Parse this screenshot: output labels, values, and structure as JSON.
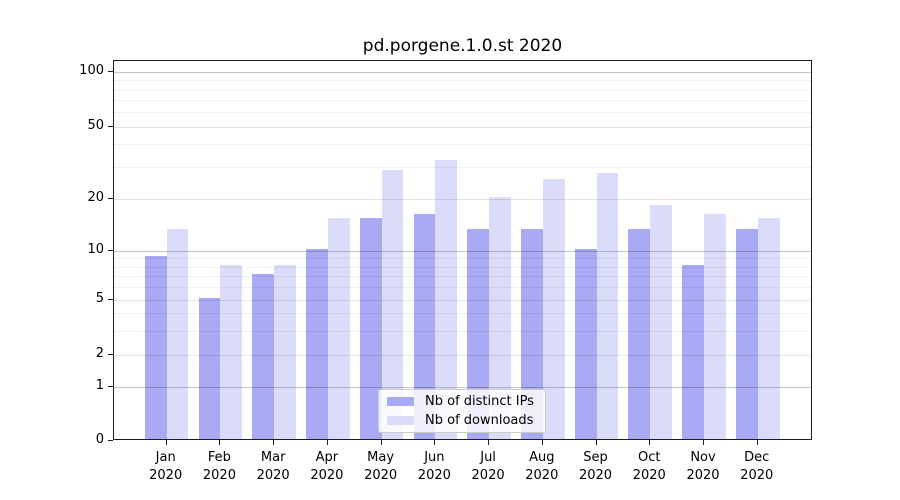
{
  "chart_data": {
    "type": "bar",
    "title": "pd.porgene.1.0.st 2020",
    "categories": [
      "Jan",
      "Feb",
      "Mar",
      "Apr",
      "May",
      "Jun",
      "Jul",
      "Aug",
      "Sep",
      "Oct",
      "Nov",
      "Dec"
    ],
    "x_year_label": "2020",
    "series": [
      {
        "name": "Nb of distinct IPs",
        "color": "#a9a9f4",
        "values": [
          9,
          5,
          7,
          10,
          15,
          16,
          13,
          13,
          10,
          13,
          8,
          13
        ]
      },
      {
        "name": "Nb of downloads",
        "color": "#dbdbfa",
        "values": [
          13,
          8,
          8,
          15,
          28,
          32,
          20,
          25,
          27,
          18,
          16,
          15
        ]
      }
    ],
    "yscale": "symlog",
    "ytick_labels": [
      "100",
      "50",
      "20",
      "10",
      "5",
      "2",
      "1",
      "0"
    ],
    "ytick_values": [
      100,
      50,
      20,
      10,
      5,
      2,
      1,
      0
    ],
    "ylim": [
      0,
      115
    ],
    "xlabel": "",
    "ylabel": "",
    "grid": true,
    "legend_position": "lower center",
    "background_color": "#ffffff"
  }
}
